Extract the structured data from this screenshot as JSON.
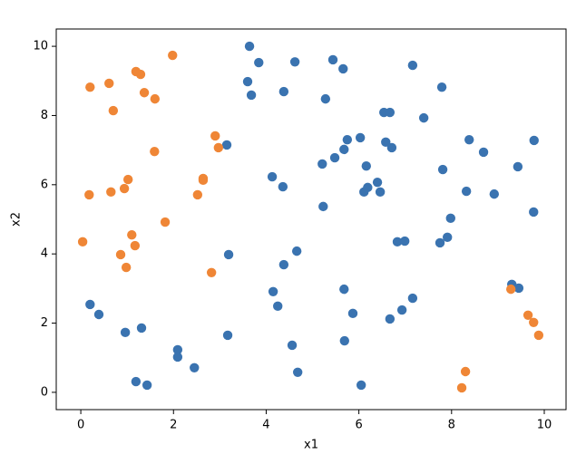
{
  "chart_data": {
    "type": "scatter",
    "x_label": "x1",
    "y_label": "x2",
    "xlim": [
      -0.53,
      10.47
    ],
    "ylim": [
      -0.5,
      10.5
    ],
    "xticks": [
      0,
      2,
      4,
      6,
      8,
      10
    ],
    "yticks": [
      0,
      2,
      4,
      6,
      8,
      10
    ],
    "grid": false,
    "series": [
      {
        "color": "#3a73b0",
        "x": [
          3.64,
          3.84,
          4.62,
          5.44,
          5.66,
          7.16,
          3.6,
          3.68,
          4.38,
          5.28,
          7.79,
          6.54,
          6.67,
          7.4,
          3.15,
          6.03,
          5.75,
          6.58,
          6.71,
          5.68,
          8.38,
          8.69,
          9.78,
          5.48,
          5.21,
          6.16,
          7.81,
          9.43,
          4.13,
          4.36,
          6.4,
          6.19,
          6.11,
          6.46,
          8.32,
          8.92,
          5.23,
          9.77,
          7.98,
          4.66,
          3.19,
          6.83,
          6.99,
          7.75,
          7.91,
          4.38,
          4.15,
          5.68,
          9.3,
          9.45,
          7.16,
          4.25,
          5.87,
          6.93,
          6.67,
          0.2,
          0.39,
          1.31,
          0.96,
          3.17,
          5.69,
          4.56,
          2.09,
          2.09,
          2.45,
          4.68,
          1.19,
          1.43,
          6.05
        ],
        "values": [
          10.0,
          9.53,
          9.55,
          9.61,
          9.35,
          9.45,
          8.98,
          8.59,
          8.69,
          8.48,
          8.82,
          8.09,
          8.09,
          7.93,
          7.15,
          7.36,
          7.3,
          7.23,
          7.07,
          7.02,
          7.3,
          6.94,
          7.28,
          6.78,
          6.6,
          6.54,
          6.44,
          6.52,
          6.23,
          5.94,
          6.07,
          5.92,
          5.79,
          5.79,
          5.81,
          5.73,
          5.37,
          5.21,
          5.03,
          4.08,
          3.98,
          4.35,
          4.37,
          4.32,
          4.48,
          3.69,
          2.91,
          2.98,
          3.12,
          3.01,
          2.72,
          2.49,
          2.28,
          2.38,
          2.12,
          2.54,
          2.25,
          1.86,
          1.73,
          1.65,
          1.49,
          1.36,
          1.23,
          1.02,
          0.71,
          0.58,
          0.31,
          0.21,
          0.21
        ]
      },
      {
        "color": "#ef8636",
        "x": [
          1.98,
          0.2,
          0.61,
          1.19,
          1.29,
          1.37,
          1.6,
          0.7,
          2.9,
          2.97,
          1.59,
          1.02,
          0.94,
          0.65,
          0.18,
          2.64,
          2.64,
          2.52,
          1.82,
          1.1,
          1.17,
          0.04,
          0.86,
          0.98,
          2.82,
          9.28,
          9.65,
          9.77,
          9.88,
          8.3,
          8.22
        ],
        "values": [
          9.74,
          8.82,
          8.93,
          9.27,
          9.19,
          8.66,
          8.48,
          8.14,
          7.41,
          7.07,
          6.96,
          6.15,
          5.89,
          5.79,
          5.71,
          6.18,
          6.13,
          5.71,
          4.92,
          4.55,
          4.24,
          4.35,
          3.98,
          3.61,
          3.46,
          2.98,
          2.23,
          2.02,
          1.65,
          0.6,
          0.13
        ]
      }
    ]
  }
}
